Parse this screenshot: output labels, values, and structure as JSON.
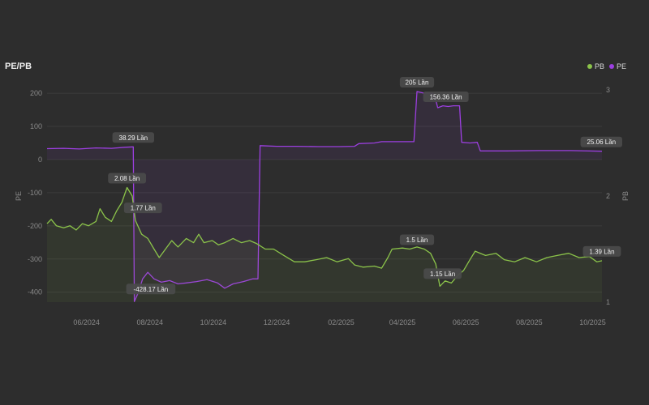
{
  "title": "PE/PB",
  "legend": [
    {
      "name": "PB",
      "color": "#8bc34a"
    },
    {
      "name": "PE",
      "color": "#9c3fe0"
    }
  ],
  "chart_data": {
    "type": "line",
    "xlabel": "",
    "x_ticks": [
      "06/2024",
      "08/2024",
      "10/2024",
      "12/2024",
      "02/2025",
      "04/2025",
      "06/2025",
      "08/2025",
      "10/2025"
    ],
    "y_left": {
      "label": "PE",
      "ticks": [
        200,
        100,
        0,
        -100,
        -200,
        -300,
        -400
      ],
      "range": [
        -430,
        210
      ]
    },
    "y_right": {
      "label": "PB",
      "ticks": [
        3,
        2,
        1
      ],
      "range": [
        1.0,
        3.0
      ]
    },
    "grid": true,
    "legend_position": "top-right",
    "x_range": [
      "2024-04-24",
      "2025-10-10"
    ],
    "series": [
      {
        "name": "PE",
        "axis": "left",
        "color": "#9c3fe0",
        "points": [
          [
            "2024-04-24",
            33
          ],
          [
            "2024-05-10",
            34
          ],
          [
            "2024-05-25",
            32
          ],
          [
            "2024-06-10",
            35
          ],
          [
            "2024-06-25",
            34
          ],
          [
            "2024-07-08",
            37
          ],
          [
            "2024-07-16",
            38.29
          ],
          [
            "2024-07-17",
            -428.17
          ],
          [
            "2024-07-21",
            -400
          ],
          [
            "2024-07-25",
            -360
          ],
          [
            "2024-07-30",
            -340
          ],
          [
            "2024-08-05",
            -360
          ],
          [
            "2024-08-12",
            -370
          ],
          [
            "2024-08-20",
            -365
          ],
          [
            "2024-08-28",
            -375
          ],
          [
            "2024-09-05",
            -372
          ],
          [
            "2024-09-15",
            -368
          ],
          [
            "2024-09-25",
            -362
          ],
          [
            "2024-10-05",
            -372
          ],
          [
            "2024-10-12",
            -388
          ],
          [
            "2024-10-20",
            -375
          ],
          [
            "2024-10-30",
            -368
          ],
          [
            "2024-11-08",
            -360
          ],
          [
            "2024-11-13",
            -360
          ],
          [
            "2024-11-15",
            42
          ],
          [
            "2024-12-01",
            40
          ],
          [
            "2024-12-20",
            40
          ],
          [
            "2025-01-10",
            39
          ],
          [
            "2025-01-30",
            39
          ],
          [
            "2025-02-14",
            40
          ],
          [
            "2025-02-18",
            48
          ],
          [
            "2025-03-05",
            50
          ],
          [
            "2025-03-12",
            54
          ],
          [
            "2025-03-25",
            54
          ],
          [
            "2025-04-12",
            54
          ],
          [
            "2025-04-15",
            205
          ],
          [
            "2025-04-22",
            200
          ],
          [
            "2025-04-30",
            200
          ],
          [
            "2025-05-03",
            180
          ],
          [
            "2025-05-05",
            156.36
          ],
          [
            "2025-05-10",
            162
          ],
          [
            "2025-05-15",
            160
          ],
          [
            "2025-05-20",
            162
          ],
          [
            "2025-05-26",
            162
          ],
          [
            "2025-05-28",
            52
          ],
          [
            "2025-06-05",
            50
          ],
          [
            "2025-06-12",
            52
          ],
          [
            "2025-06-15",
            26
          ],
          [
            "2025-07-10",
            26
          ],
          [
            "2025-08-10",
            27
          ],
          [
            "2025-09-10",
            27
          ],
          [
            "2025-10-10",
            25.06
          ]
        ]
      },
      {
        "name": "PB",
        "axis": "right",
        "color": "#8bc34a",
        "points": [
          [
            "2024-04-24",
            1.74
          ],
          [
            "2024-04-28",
            1.78
          ],
          [
            "2024-05-03",
            1.72
          ],
          [
            "2024-05-10",
            1.7
          ],
          [
            "2024-05-16",
            1.72
          ],
          [
            "2024-05-22",
            1.68
          ],
          [
            "2024-05-28",
            1.74
          ],
          [
            "2024-06-03",
            1.72
          ],
          [
            "2024-06-10",
            1.76
          ],
          [
            "2024-06-14",
            1.88
          ],
          [
            "2024-06-19",
            1.8
          ],
          [
            "2024-06-25",
            1.76
          ],
          [
            "2024-06-30",
            1.86
          ],
          [
            "2024-07-05",
            1.94
          ],
          [
            "2024-07-10",
            2.08
          ],
          [
            "2024-07-15",
            2.0
          ],
          [
            "2024-07-18",
            1.77
          ],
          [
            "2024-07-24",
            1.64
          ],
          [
            "2024-07-30",
            1.6
          ],
          [
            "2024-08-05",
            1.5
          ],
          [
            "2024-08-10",
            1.42
          ],
          [
            "2024-08-16",
            1.5
          ],
          [
            "2024-08-22",
            1.58
          ],
          [
            "2024-08-28",
            1.52
          ],
          [
            "2024-09-05",
            1.6
          ],
          [
            "2024-09-12",
            1.56
          ],
          [
            "2024-09-17",
            1.64
          ],
          [
            "2024-09-22",
            1.56
          ],
          [
            "2024-09-30",
            1.58
          ],
          [
            "2024-10-06",
            1.54
          ],
          [
            "2024-10-12",
            1.56
          ],
          [
            "2024-10-20",
            1.6
          ],
          [
            "2024-10-28",
            1.56
          ],
          [
            "2024-11-05",
            1.58
          ],
          [
            "2024-11-12",
            1.55
          ],
          [
            "2024-11-20",
            1.5
          ],
          [
            "2024-11-28",
            1.5
          ],
          [
            "2024-12-08",
            1.44
          ],
          [
            "2024-12-18",
            1.38
          ],
          [
            "2024-12-28",
            1.38
          ],
          [
            "2025-01-08",
            1.4
          ],
          [
            "2025-01-18",
            1.42
          ],
          [
            "2025-01-28",
            1.38
          ],
          [
            "2025-02-08",
            1.41
          ],
          [
            "2025-02-14",
            1.35
          ],
          [
            "2025-02-22",
            1.33
          ],
          [
            "2025-03-05",
            1.34
          ],
          [
            "2025-03-12",
            1.32
          ],
          [
            "2025-03-18",
            1.42
          ],
          [
            "2025-03-22",
            1.5
          ],
          [
            "2025-04-01",
            1.51
          ],
          [
            "2025-04-08",
            1.5
          ],
          [
            "2025-04-15",
            1.52
          ],
          [
            "2025-04-22",
            1.5
          ],
          [
            "2025-04-28",
            1.46
          ],
          [
            "2025-05-03",
            1.36
          ],
          [
            "2025-05-07",
            1.15
          ],
          [
            "2025-05-12",
            1.2
          ],
          [
            "2025-05-18",
            1.18
          ],
          [
            "2025-05-24",
            1.25
          ],
          [
            "2025-05-30",
            1.3
          ],
          [
            "2025-06-05",
            1.4
          ],
          [
            "2025-06-10",
            1.48
          ],
          [
            "2025-06-20",
            1.44
          ],
          [
            "2025-06-30",
            1.46
          ],
          [
            "2025-07-08",
            1.4
          ],
          [
            "2025-07-18",
            1.38
          ],
          [
            "2025-07-28",
            1.42
          ],
          [
            "2025-08-08",
            1.38
          ],
          [
            "2025-08-18",
            1.42
          ],
          [
            "2025-08-28",
            1.44
          ],
          [
            "2025-09-08",
            1.46
          ],
          [
            "2025-09-18",
            1.42
          ],
          [
            "2025-09-28",
            1.43
          ],
          [
            "2025-10-05",
            1.38
          ],
          [
            "2025-10-10",
            1.39
          ]
        ]
      }
    ],
    "annotations": [
      {
        "series": "PE",
        "date": "2024-07-16",
        "value": 38.29,
        "text": "38.29 Lần"
      },
      {
        "series": "PE",
        "date": "2024-07-17",
        "value": -428.17,
        "text": "-428.17 Lần"
      },
      {
        "series": "PE",
        "date": "2025-04-15",
        "value": 205,
        "text": "205 Lần"
      },
      {
        "series": "PE",
        "date": "2025-05-05",
        "value": 156.36,
        "text": "156.36 Lần"
      },
      {
        "series": "PE",
        "date": "2025-10-10",
        "value": 25.06,
        "text": "25.06 Lần"
      },
      {
        "series": "PB",
        "date": "2024-07-10",
        "value": 2.08,
        "text": "2.08 Lần"
      },
      {
        "series": "PB",
        "date": "2024-07-18",
        "value": 1.77,
        "text": "1.77 Lần"
      },
      {
        "series": "PB",
        "date": "2025-04-15",
        "value": 1.5,
        "text": "1.5 Lần"
      },
      {
        "series": "PB",
        "date": "2025-05-07",
        "value": 1.15,
        "text": "1.15 Lần"
      },
      {
        "series": "PB",
        "date": "2025-10-10",
        "value": 1.39,
        "text": "1.39 Lần"
      }
    ]
  }
}
